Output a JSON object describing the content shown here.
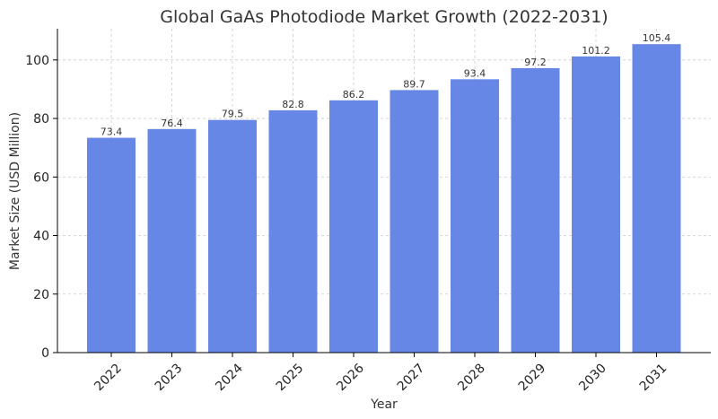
{
  "chart_data": {
    "type": "bar",
    "title": "Global GaAs Photodiode Market Growth (2022-2031)",
    "xlabel": "Year",
    "ylabel": "Market Size (USD Million)",
    "categories": [
      "2022",
      "2023",
      "2024",
      "2025",
      "2026",
      "2027",
      "2028",
      "2029",
      "2030",
      "2031"
    ],
    "values": [
      73.4,
      76.4,
      79.5,
      82.8,
      86.2,
      89.7,
      93.4,
      97.2,
      101.2,
      105.4
    ],
    "data_labels": [
      "73.4",
      "76.4",
      "79.5",
      "82.8",
      "86.2",
      "89.7",
      "93.4",
      "97.2",
      "101.2",
      "105.4"
    ],
    "ylim": [
      0,
      110.67
    ],
    "yticks": [
      0,
      20,
      40,
      60,
      80,
      100
    ],
    "grid": true,
    "bar_color": "#6787e7"
  }
}
